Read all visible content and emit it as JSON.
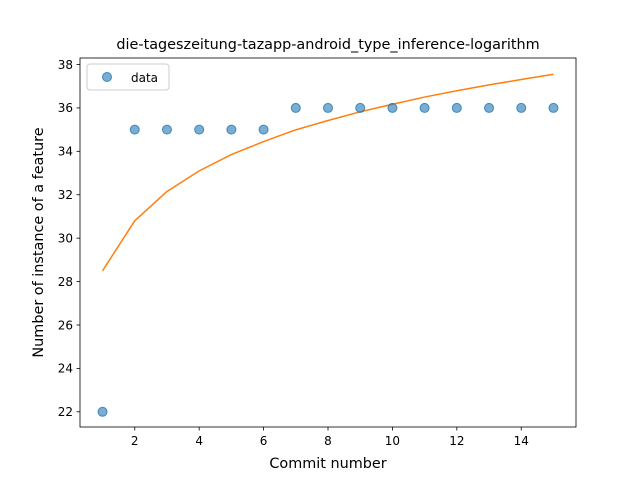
{
  "chart_data": {
    "type": "scatter",
    "title": "die-tageszeitung-tazapp-android_type_inference-logarithm",
    "xlabel": "Commit number",
    "ylabel": "Number of instance of a feature",
    "xlim": [
      0.3,
      15.7
    ],
    "ylim": [
      21.3,
      38.3
    ],
    "x_ticks": [
      2,
      4,
      6,
      8,
      10,
      12,
      14
    ],
    "y_ticks": [
      22,
      24,
      26,
      28,
      30,
      32,
      34,
      36,
      38
    ],
    "grid": false,
    "legend": {
      "placement": "top-left",
      "entries": [
        "data"
      ]
    },
    "series": [
      {
        "name": "data",
        "kind": "scatter",
        "color": "#1f77b4",
        "x": [
          1,
          2,
          3,
          4,
          5,
          6,
          7,
          8,
          9,
          10,
          11,
          12,
          13,
          14,
          15
        ],
        "y": [
          22,
          35,
          35,
          35,
          35,
          35,
          36,
          36,
          36,
          36,
          36,
          36,
          36,
          36,
          36
        ]
      },
      {
        "kind": "line",
        "color": "#ff7f0e",
        "x": [
          1,
          2,
          3,
          4,
          5,
          6,
          7,
          8,
          9,
          10,
          11,
          12,
          13,
          14,
          15
        ],
        "y": [
          28.5,
          30.8,
          32.15,
          33.1,
          33.85,
          34.45,
          34.99,
          35.42,
          35.82,
          36.17,
          36.5,
          36.79,
          37.06,
          37.31,
          37.55
        ]
      }
    ]
  }
}
